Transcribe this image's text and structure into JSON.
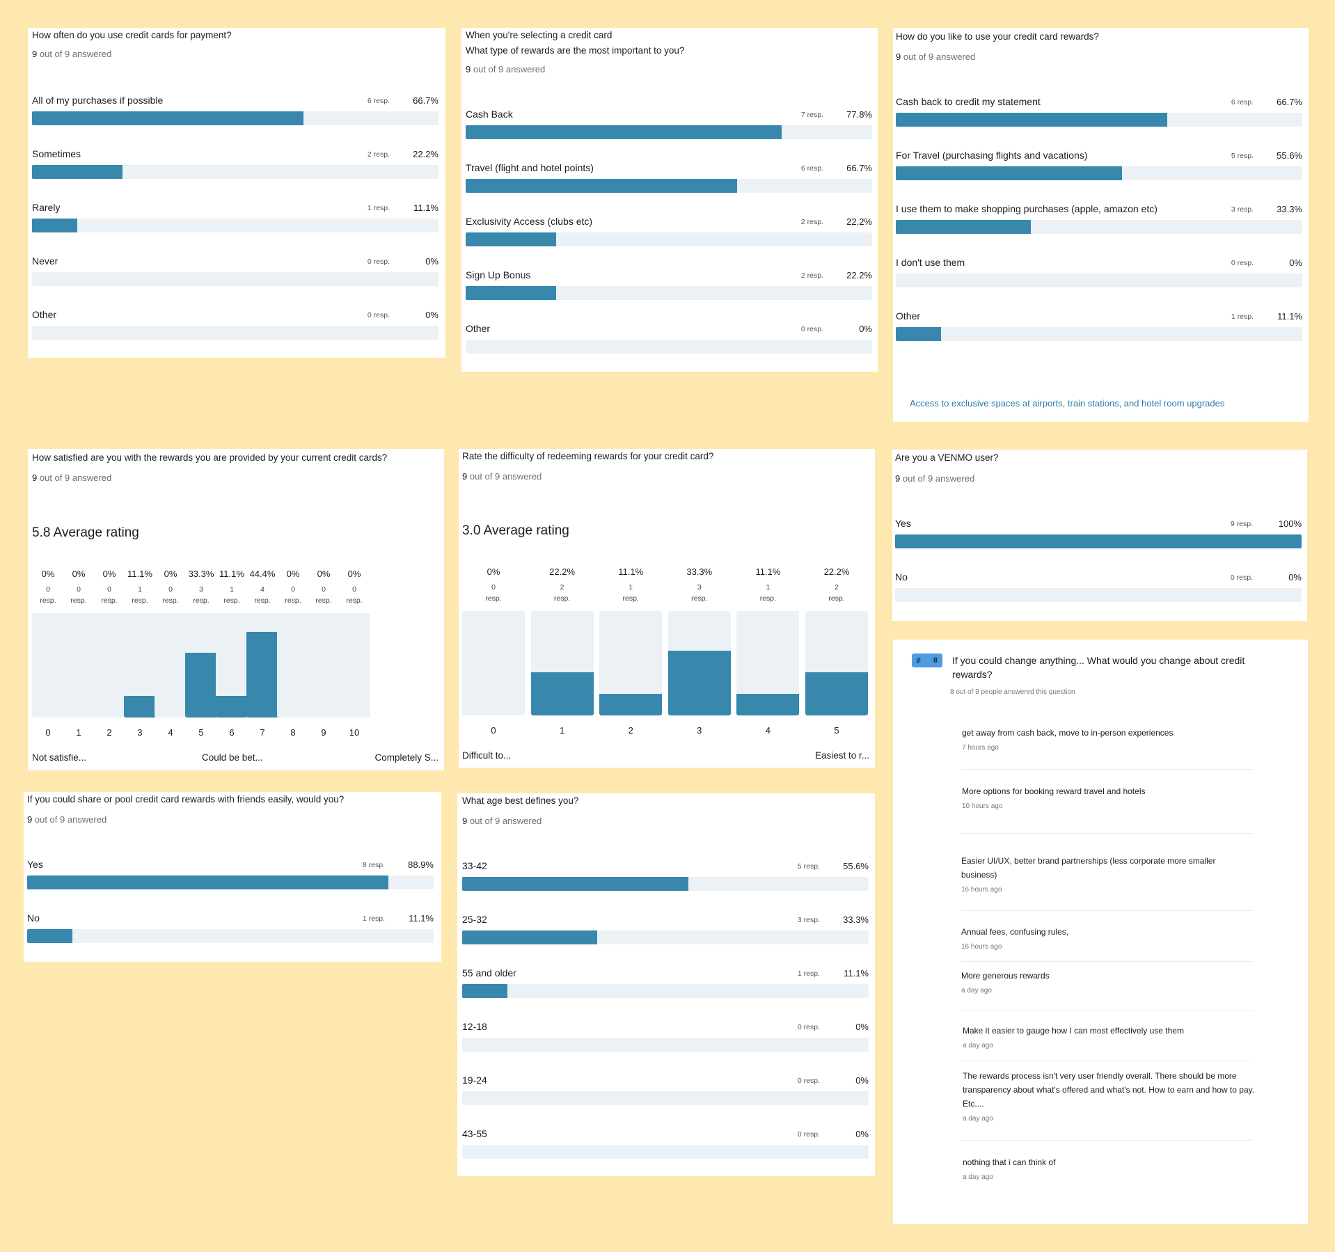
{
  "cards": [
    {
      "id": "payment-frequency",
      "question": "How often do you use credit cards for payment?",
      "answered": "9",
      "answered_suffix": "out of 9 answered",
      "rows": [
        {
          "label": "All of my purchases if possible",
          "responses": "6 resp.",
          "percent": "66.7%",
          "value": 66.7
        },
        {
          "label": "Sometimes",
          "responses": "2 resp.",
          "percent": "22.2%",
          "value": 22.2
        },
        {
          "label": "Rarely",
          "responses": "1 resp.",
          "percent": "11.1%",
          "value": 11.1
        },
        {
          "label": "Never",
          "responses": "0 resp.",
          "percent": "0%",
          "value": 0
        },
        {
          "label": "Other",
          "responses": "0 resp.",
          "percent": "0%",
          "value": 0
        }
      ]
    },
    {
      "id": "reward-types",
      "question": "When you're selecting a credit card\nWhat type of rewards are the most important to you?",
      "answered": "9",
      "answered_suffix": "out of 9 answered",
      "rows": [
        {
          "label": "Cash Back",
          "responses": "7 resp.",
          "percent": "77.8%",
          "value": 77.8
        },
        {
          "label": "Travel (flight and hotel points)",
          "responses": "6 resp.",
          "percent": "66.7%",
          "value": 66.7
        },
        {
          "label": "Exclusivity Access (clubs etc)",
          "responses": "2 resp.",
          "percent": "22.2%",
          "value": 22.2
        },
        {
          "label": "Sign Up Bonus",
          "responses": "2 resp.",
          "percent": "22.2%",
          "value": 22.2
        },
        {
          "label": "Other",
          "responses": "0 resp.",
          "percent": "0%",
          "value": 0
        }
      ]
    },
    {
      "id": "reward-usage",
      "question": "How do you like to use your credit card rewards?",
      "answered": "9",
      "answered_suffix": "out of 9 answered",
      "rows": [
        {
          "label": "Cash back to credit my statement",
          "responses": "6 resp.",
          "percent": "66.7%",
          "value": 66.7
        },
        {
          "label": "For Travel (purchasing flights and vacations)",
          "responses": "5 resp.",
          "percent": "55.6%",
          "value": 55.6
        },
        {
          "label": "I use them to make shopping purchases (apple, amazon etc)",
          "responses": "3 resp.",
          "percent": "33.3%",
          "value": 33.3
        },
        {
          "label": "I don't use them",
          "responses": "0 resp.",
          "percent": "0%",
          "value": 0
        },
        {
          "label": "Other",
          "responses": "1 resp.",
          "percent": "11.1%",
          "value": 11.1
        }
      ],
      "other_response": "Access to exclusive spaces at airports, train stations, and hotel room upgrades"
    },
    {
      "id": "venmo",
      "question": "Are you a VENMO user?",
      "answered": "9",
      "answered_suffix": "out of 9 answered",
      "rows": [
        {
          "label": "Yes",
          "responses": "9 resp.",
          "percent": "100%",
          "value": 100
        },
        {
          "label": "No",
          "responses": "0 resp.",
          "percent": "0%",
          "value": 0
        }
      ]
    },
    {
      "id": "share-rewards",
      "question": "If you could share or pool credit card rewards with friends easily, would you?",
      "answered": "9",
      "answered_suffix": "out of 9 answered",
      "rows": [
        {
          "label": "Yes",
          "responses": "8 resp.",
          "percent": "88.9%",
          "value": 88.9
        },
        {
          "label": "No",
          "responses": "1 resp.",
          "percent": "11.1%",
          "value": 11.1
        }
      ]
    },
    {
      "id": "age",
      "question": "What age best defines you?",
      "answered": "9",
      "answered_suffix": "out of 9 answered",
      "rows": [
        {
          "label": "33-42",
          "responses": "5 resp.",
          "percent": "55.6%",
          "value": 55.6
        },
        {
          "label": "25-32",
          "responses": "3 resp.",
          "percent": "33.3%",
          "value": 33.3
        },
        {
          "label": "55 and older",
          "responses": "1 resp.",
          "percent": "11.1%",
          "value": 11.1
        },
        {
          "label": "12-18",
          "responses": "0 resp.",
          "percent": "0%",
          "value": 0
        },
        {
          "label": "19-24",
          "responses": "0 resp.",
          "percent": "0%",
          "value": 0
        },
        {
          "label": "43-55",
          "responses": "0 resp.",
          "percent": "0%",
          "value": 0
        }
      ]
    }
  ],
  "ratings": [
    {
      "id": "satisfaction",
      "question": "How satisfied are you with the rewards you are provided by your current credit cards?",
      "answered": "9",
      "answered_suffix": "out of 9 answered",
      "average": "5.8 Average rating",
      "columns": [
        {
          "x": "0",
          "percent": "0%",
          "count": "0",
          "value": 0
        },
        {
          "x": "1",
          "percent": "0%",
          "count": "0",
          "value": 0
        },
        {
          "x": "2",
          "percent": "0%",
          "count": "0",
          "value": 0
        },
        {
          "x": "3",
          "percent": "11.1%",
          "count": "1",
          "value": 11.1
        },
        {
          "x": "4",
          "percent": "0%",
          "count": "0",
          "value": 0
        },
        {
          "x": "5",
          "percent": "33.3%",
          "count": "3",
          "value": 33.3
        },
        {
          "x": "6",
          "percent": "11.1%",
          "count": "1",
          "value": 11.1
        },
        {
          "x": "7",
          "percent": "44.4%",
          "count": "4",
          "value": 44.4
        },
        {
          "x": "8",
          "percent": "0%",
          "count": "0",
          "value": 0
        },
        {
          "x": "9",
          "percent": "0%",
          "count": "0",
          "value": 0
        },
        {
          "x": "10",
          "percent": "0%",
          "count": "0",
          "value": 0
        }
      ],
      "resp_word": "resp.",
      "anchors": [
        "Not satisfie...",
        "Could be bet...",
        "Completely S..."
      ]
    },
    {
      "id": "difficulty",
      "question": "Rate the difficulty of redeeming rewards for your credit card?",
      "answered": "9",
      "answered_suffix": "out of 9 answered",
      "average": "3.0 Average rating",
      "columns": [
        {
          "x": "0",
          "percent": "0%",
          "count": "0",
          "value": 0
        },
        {
          "x": "1",
          "percent": "22.2%",
          "count": "2",
          "value": 22.2
        },
        {
          "x": "2",
          "percent": "11.1%",
          "count": "1",
          "value": 11.1
        },
        {
          "x": "3",
          "percent": "33.3%",
          "count": "3",
          "value": 33.3
        },
        {
          "x": "4",
          "percent": "11.1%",
          "count": "1",
          "value": 11.1
        },
        {
          "x": "5",
          "percent": "22.2%",
          "count": "2",
          "value": 22.2
        }
      ],
      "resp_word": "resp.",
      "anchors": [
        "Difficult to...",
        "Easiest to r..."
      ]
    }
  ],
  "open_ended": {
    "badge_icon": "text-lines-icon",
    "badge_count": "8",
    "question": "If you could change anything... What would you change about credit rewards?",
    "subtitle": "8 out of 9 people answered this question",
    "answers": [
      {
        "text": "get away from cash back, move to in-person experiences",
        "time": "7 hours ago"
      },
      {
        "text": "More options for booking reward travel and hotels",
        "time": "10 hours ago"
      },
      {
        "text": "Easier UI/UX, better brand partnerships (less corporate more smaller business)",
        "time": "16 hours ago"
      },
      {
        "text": "Annual fees, confusing rules,",
        "time": "16 hours ago"
      },
      {
        "text": "More generous rewards",
        "time": "a day ago"
      },
      {
        "text": "Make it easier to gauge how I can most effectively use them",
        "time": "a day ago"
      },
      {
        "text": "The rewards process isn't very user friendly overall. There should be more transparency about what's offered and what's not. How to earn and how to pay. Etc....",
        "time": "a day ago"
      },
      {
        "text": "nothing that i can think of",
        "time": "a day ago"
      }
    ]
  },
  "colors": {
    "background": "#fee8b0",
    "bar_fill": "#3887ad",
    "bar_track": "#ebf1f5",
    "link": "#2b79a8",
    "badge": "#4e9be2"
  }
}
